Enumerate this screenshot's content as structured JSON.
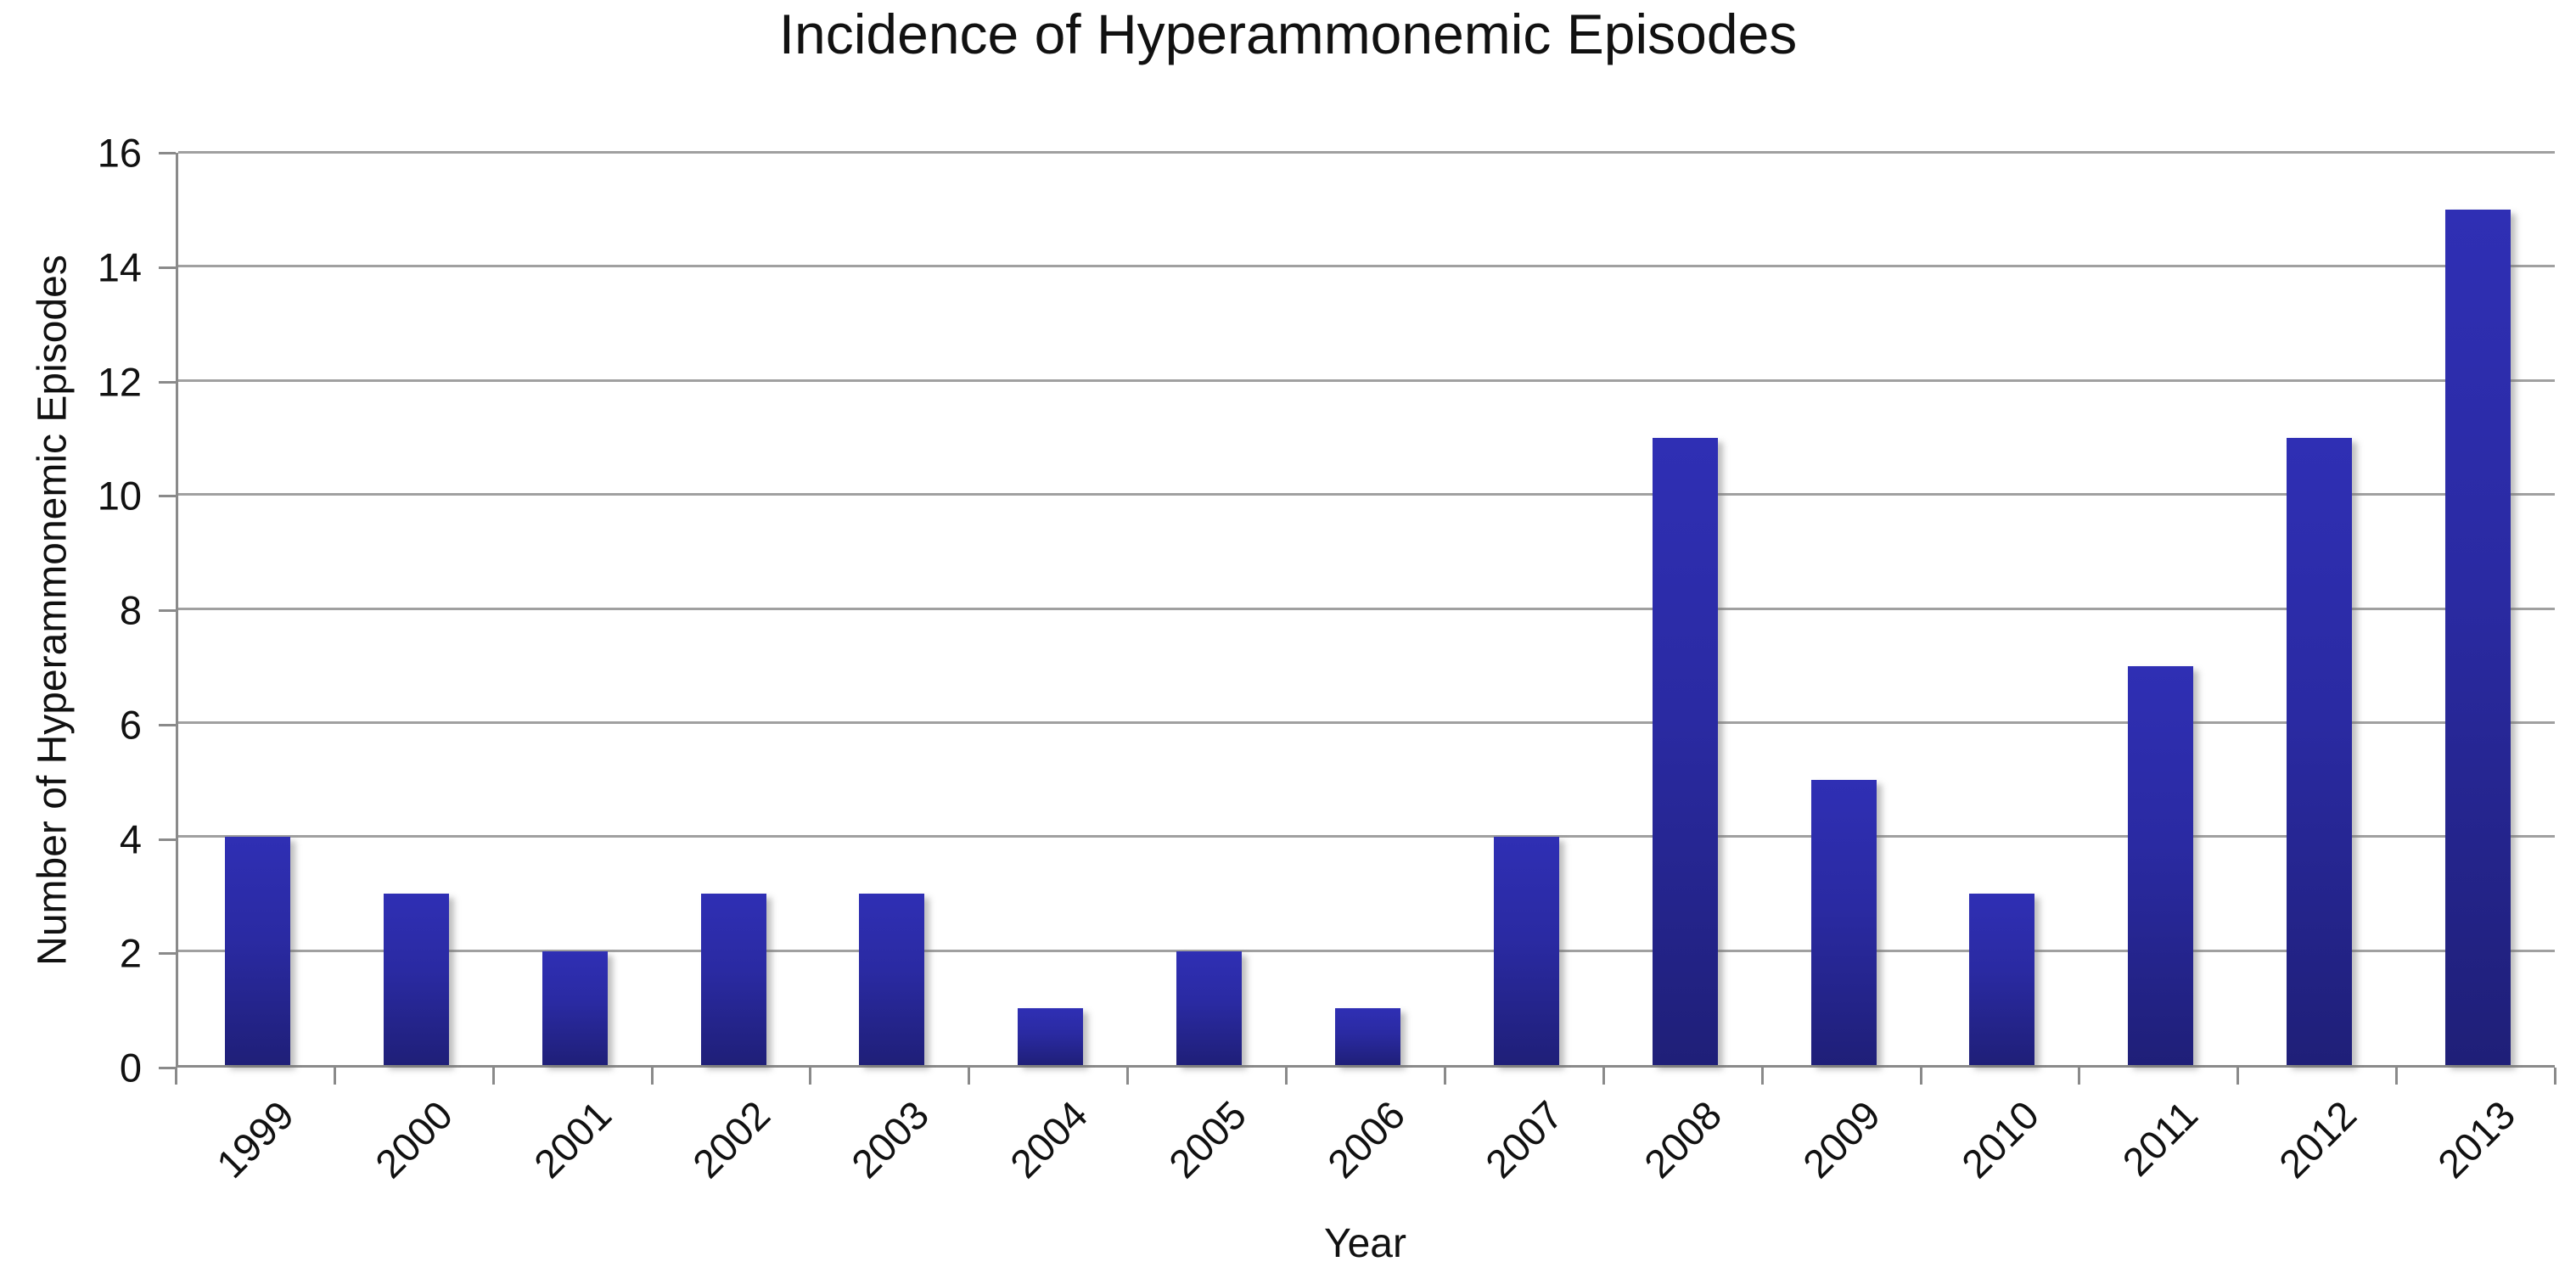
{
  "chart_data": {
    "type": "bar",
    "title": "Incidence of Hyperammonemic Episodes",
    "xlabel": "Year",
    "ylabel": "Number of Hyperammonemic Episodes",
    "categories": [
      "1999",
      "2000",
      "2001",
      "2002",
      "2003",
      "2004",
      "2005",
      "2006",
      "2007",
      "2008",
      "2009",
      "2010",
      "2011",
      "2012",
      "2013"
    ],
    "values": [
      4,
      3,
      2,
      3,
      3,
      1,
      2,
      1,
      4,
      11,
      5,
      3,
      7,
      11,
      15
    ],
    "ylim": [
      0,
      16
    ],
    "yticks": [
      0,
      2,
      4,
      6,
      8,
      10,
      12,
      14,
      16
    ],
    "grid": true,
    "legend": "none",
    "colors": {
      "bar_gradient_top": "#2f2fb4",
      "bar_gradient_bottom": "#1f1f78",
      "gridline": "#a0a0a0",
      "axis": "#8a8a8a",
      "text": "#111111",
      "background": "#ffffff"
    }
  }
}
